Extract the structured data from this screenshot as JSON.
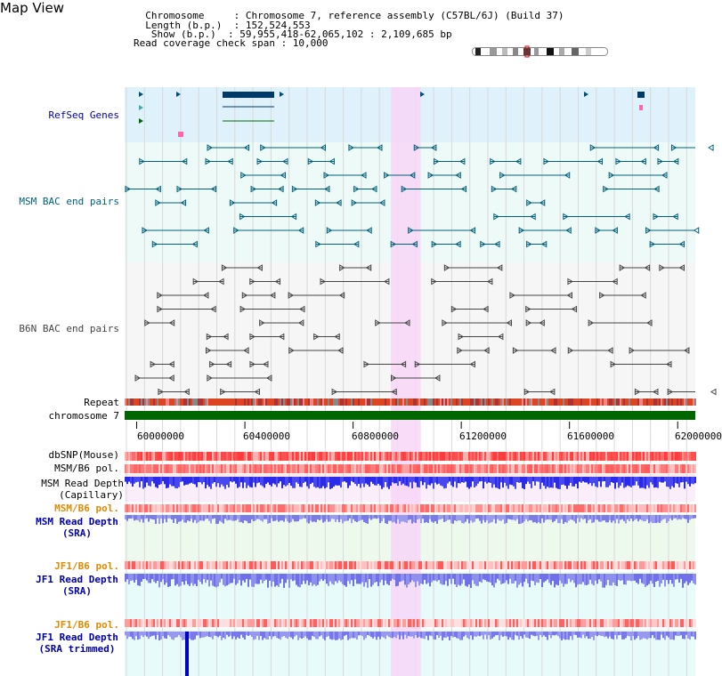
{
  "header": {
    "title": "Map View",
    "info_lines": [
      "  Chromosome     : Chromosome 7, reference assembly (C57BL/6J) (Build 37)",
      "  Length (b.p.)  : 152,524,553",
      "   Show (b.p.)  : 59,955,418-62,065,102 : 2,109,685 bp",
      "Read coverage check span : 10,000"
    ]
  },
  "tracks": {
    "refseq_label": "RefSeq Genes",
    "msm_bac_label": "MSM BAC end pairs",
    "b6n_bac_label": "B6N BAC end pairs",
    "repeat_label": "Repeat",
    "chrom_label": "chromosome 7",
    "dbsnp_label": "dbSNP(Mouse)",
    "msm_b6_pol_label": "MSM/B6 pol.",
    "msm_depth_cap_label": "MSM Read Depth\n(Capillary)",
    "msm_b6_pol2_label": "MSM/B6 pol.",
    "msm_depth_sra_label": "MSM Read Depth\n(SRA)",
    "jf1_b6_pol_label": "JF1/B6 pol.",
    "jf1_depth_sra_label": "JF1 Read Depth\n(SRA)",
    "jf1_b6_pol2_label": "JF1/B6 pol.",
    "jf1_depth_trim_label": "JF1 Read Depth\n(SRA trimmed)"
  },
  "axis": {
    "ticks": [
      "60000000",
      "60400000",
      "60800000",
      "61200000",
      "61600000",
      "62000000"
    ],
    "tick_values": [
      60000000,
      60400000,
      60800000,
      61200000,
      61600000,
      62000000
    ],
    "start": 59955418,
    "end": 62065102
  },
  "highlight": {
    "start": 60940000,
    "end": 61050000
  },
  "colors": {
    "refseq": "#0000aa",
    "msm": "#00607a",
    "b6n": "#444444",
    "pol_orange": "#e08a00",
    "sra_blue": "#0000aa",
    "chrom_green": "#006600",
    "highlight": "#f7d6f7"
  }
}
